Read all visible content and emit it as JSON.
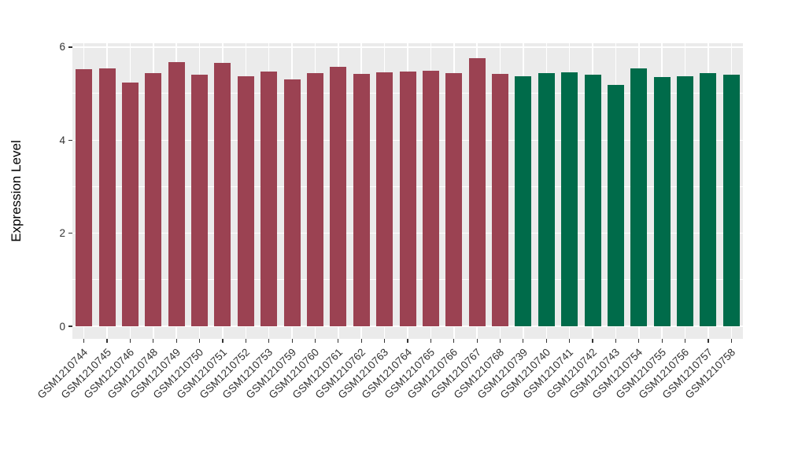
{
  "chart_data": {
    "type": "bar",
    "title": "",
    "xlabel": "",
    "ylabel": "Expression Level",
    "ylim": [
      0,
      6.08
    ],
    "yticks": [
      0,
      2,
      4,
      6
    ],
    "yminorticks": [
      1,
      3,
      5
    ],
    "grid": "white major+minor horizontal lines and major vertical lines at category centers on grey panel",
    "legend_position": "none",
    "panel_bg": "#EBEBEB",
    "grid_color": "#FFFFFF",
    "tick_color": "#333333",
    "categories": [
      "GSM1210744",
      "GSM1210745",
      "GSM1210746",
      "GSM1210748",
      "GSM1210749",
      "GSM1210750",
      "GSM1210751",
      "GSM1210752",
      "GSM1210753",
      "GSM1210759",
      "GSM1210760",
      "GSM1210761",
      "GSM1210762",
      "GSM1210763",
      "GSM1210764",
      "GSM1210765",
      "GSM1210766",
      "GSM1210767",
      "GSM1210768",
      "GSM1210739",
      "GSM1210740",
      "GSM1210741",
      "GSM1210742",
      "GSM1210743",
      "GSM1210754",
      "GSM1210755",
      "GSM1210756",
      "GSM1210757",
      "GSM1210758"
    ],
    "values": [
      5.53,
      5.54,
      5.24,
      5.44,
      5.68,
      5.4,
      5.67,
      5.38,
      5.47,
      5.31,
      5.45,
      5.58,
      5.42,
      5.46,
      5.48,
      5.49,
      5.45,
      5.76,
      5.42,
      5.38,
      5.44,
      5.46,
      5.41,
      5.19,
      5.55,
      5.35,
      5.38,
      5.45,
      5.4
    ],
    "groups": [
      "maroon",
      "maroon",
      "maroon",
      "maroon",
      "maroon",
      "maroon",
      "maroon",
      "maroon",
      "maroon",
      "maroon",
      "maroon",
      "maroon",
      "maroon",
      "maroon",
      "maroon",
      "maroon",
      "maroon",
      "maroon",
      "maroon",
      "green",
      "green",
      "green",
      "green",
      "green",
      "green",
      "green",
      "green",
      "green",
      "green"
    ],
    "colors": {
      "maroon": "#9B4252",
      "green": "#006B4A"
    }
  }
}
